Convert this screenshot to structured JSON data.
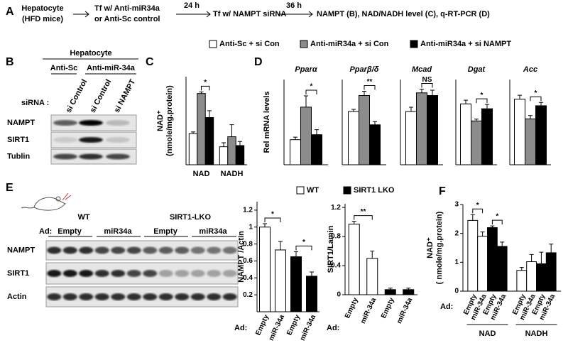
{
  "panels": [
    "A",
    "B",
    "C",
    "D",
    "E",
    "F"
  ],
  "schematic": {
    "steps": [
      [
        "Hepatocyte",
        "(HFD mice)"
      ],
      [
        "Tf w/ Anti-miR34a",
        "or Anti-Sc control"
      ],
      [
        "Tf w/ NAMPT siRNA"
      ],
      [
        "NAMPT (B), NAD/NADH  level (C), q-RT-PCR (D)"
      ]
    ],
    "intervals": [
      "24 h",
      "36 h"
    ]
  },
  "blot_b": {
    "title": "Hepatocyte",
    "groups": [
      "Anti-Sc",
      "Anti-miR-34a"
    ],
    "sirna_label": "siRNA :",
    "lanes": [
      "si Control",
      "si Control",
      "si NAMPT"
    ],
    "rows": [
      "NAMPT",
      "SIRT1",
      "Tublin"
    ]
  },
  "blot_e": {
    "groups": [
      "WT",
      "SIRT1-LKO"
    ],
    "ad_label": "Ad:",
    "lanes": [
      "Empty",
      "miR34a",
      "Empty",
      "miR34a"
    ],
    "rows": [
      "NAMPT",
      "SIRT1",
      "Actin"
    ]
  },
  "chart_data": [
    {
      "type": "bar",
      "ylabel": [
        "NAD⁺",
        "(nmole/mg.protein)"
      ],
      "categories": [
        "NAD",
        "NADH"
      ],
      "ylim": [
        0,
        2.2
      ],
      "series": [
        {
          "name": "Anti-Sc + si Con",
          "color": "#ffffff",
          "values": [
            0.78,
            0.45
          ],
          "errors": [
            0.04,
            0.1
          ]
        },
        {
          "name": "Anti-miR34a + si Con",
          "color": "#8c8c8c",
          "values": [
            1.78,
            0.7
          ],
          "errors": [
            0.04,
            0.3
          ]
        },
        {
          "name": "Anti-miR34a + si NAMPT",
          "color": "#000000",
          "values": [
            1.18,
            0.48
          ],
          "errors": [
            0.17,
            0.1
          ]
        }
      ],
      "annotations": [
        "*"
      ]
    },
    {
      "type": "bar",
      "title": "Pparα",
      "ylabel": "Rel mRNA levels",
      "ylim": [
        0,
        3.4
      ],
      "series": [
        {
          "name": "Anti-Sc + si Con",
          "color": "#ffffff",
          "values": [
            1.0
          ],
          "errors": [
            0.1
          ]
        },
        {
          "name": "Anti-miR34a + si Con",
          "color": "#8c8c8c",
          "values": [
            2.3
          ],
          "errors": [
            0.45
          ]
        },
        {
          "name": "Anti-miR34a + si NAMPT",
          "color": "#000000",
          "values": [
            1.2
          ],
          "errors": [
            0.2
          ]
        }
      ],
      "annotations": [
        "*"
      ]
    },
    {
      "type": "bar",
      "title": "Pparβ/δ",
      "ylim": [
        0,
        1.6
      ],
      "series": [
        {
          "name": "Anti-Sc + si Con",
          "color": "#ffffff",
          "values": [
            1.0
          ],
          "errors": [
            0.04
          ]
        },
        {
          "name": "Anti-miR34a + si Con",
          "color": "#8c8c8c",
          "values": [
            1.3
          ],
          "errors": [
            0.08
          ]
        },
        {
          "name": "Anti-miR34a + si NAMPT",
          "color": "#000000",
          "values": [
            0.75
          ],
          "errors": [
            0.06
          ]
        }
      ],
      "annotations": [
        "**"
      ]
    },
    {
      "type": "bar",
      "title": "Mcad",
      "ylim": [
        0,
        1.6
      ],
      "series": [
        {
          "name": "Anti-Sc + si Con",
          "color": "#ffffff",
          "values": [
            1.0
          ],
          "errors": [
            0.08
          ]
        },
        {
          "name": "Anti-miR34a + si Con",
          "color": "#8c8c8c",
          "values": [
            1.35
          ],
          "errors": [
            0.07
          ]
        },
        {
          "name": "Anti-miR34a + si NAMPT",
          "color": "#000000",
          "values": [
            1.3
          ],
          "errors": [
            0.1
          ]
        }
      ],
      "annotations": [
        "NS"
      ]
    },
    {
      "type": "bar",
      "title": "Dgat",
      "ylim": [
        0,
        1.4
      ],
      "series": [
        {
          "name": "Anti-Sc + si Con",
          "color": "#ffffff",
          "values": [
            1.0
          ],
          "errors": [
            0.06
          ]
        },
        {
          "name": "Anti-miR34a + si Con",
          "color": "#8c8c8c",
          "values": [
            0.72
          ],
          "errors": [
            0.03
          ]
        },
        {
          "name": "Anti-miR34a + si NAMPT",
          "color": "#000000",
          "values": [
            0.92
          ],
          "errors": [
            0.07
          ]
        }
      ],
      "annotations": [
        "*"
      ]
    },
    {
      "type": "bar",
      "title": "Acc",
      "ylim": [
        0,
        1.3
      ],
      "series": [
        {
          "name": "Anti-Sc + si Con",
          "color": "#ffffff",
          "values": [
            1.0
          ],
          "errors": [
            0.06
          ]
        },
        {
          "name": "Anti-miR34a + si Con",
          "color": "#8c8c8c",
          "values": [
            0.7
          ],
          "errors": [
            0.05
          ]
        },
        {
          "name": "Anti-miR34a + si NAMPT",
          "color": "#000000",
          "values": [
            0.9
          ],
          "errors": [
            0.05
          ]
        }
      ],
      "annotations": [
        "*"
      ]
    },
    {
      "type": "bar",
      "ylabel": "NAMPT /Actin",
      "xlabel": "Ad:",
      "categories": [
        "Empty",
        "miR-34a",
        "Empty",
        "miR-34a"
      ],
      "ylim": [
        0,
        1.3
      ],
      "yticks": [
        0.2,
        0.4,
        0.6,
        0.8,
        1,
        1.2
      ],
      "series": [
        {
          "name": "WT",
          "color": "#ffffff",
          "values": [
            1.0,
            0.73,
            null,
            null
          ],
          "errors": [
            0.04,
            0.1,
            null,
            null
          ]
        },
        {
          "name": "SIRT1 LKO",
          "color": "#000000",
          "values": [
            null,
            null,
            0.65,
            0.42
          ],
          "errors": [
            null,
            null,
            0.06,
            0.05
          ]
        }
      ],
      "annotations": [
        "*",
        "*"
      ]
    },
    {
      "type": "bar",
      "ylabel": "SIRT1/Lamin",
      "xlabel": "Ad:",
      "categories": [
        "Empty",
        "miR-34a",
        "Empty",
        "miR-34a"
      ],
      "ylim": [
        0,
        1.25
      ],
      "yticks": [
        0,
        0.4,
        0.8,
        1.2
      ],
      "series": [
        {
          "name": "WT",
          "color": "#ffffff",
          "values": [
            0.97,
            0.5,
            null,
            null
          ],
          "errors": [
            0.04,
            0.1,
            null,
            null
          ]
        },
        {
          "name": "SIRT1 LKO",
          "color": "#000000",
          "values": [
            null,
            null,
            0.07,
            0.07
          ],
          "errors": [
            null,
            null,
            0.02,
            0.02
          ]
        }
      ],
      "annotations": [
        "**"
      ]
    },
    {
      "type": "bar",
      "ylabel": [
        "NAD⁺",
        "( nmole/mg.protein)"
      ],
      "xlabel": "Ad:",
      "categories": [
        "NAD",
        "NADH"
      ],
      "ylim": [
        0,
        3
      ],
      "yticks": [
        0,
        1,
        2,
        3
      ],
      "series": [
        {
          "name": "Empty",
          "color": "#ffffff",
          "values": [
            2.45,
            0.72
          ],
          "errors": [
            0.2,
            0.1
          ]
        },
        {
          "name": "miR-34a",
          "color": "#ffffff",
          "values": [
            1.9,
            1.02
          ],
          "errors": [
            0.15,
            0.25
          ]
        },
        {
          "name": "Empty",
          "color": "#000000",
          "values": [
            2.2,
            0.95
          ],
          "errors": [
            0.06,
            0.4
          ]
        },
        {
          "name": "miR-34a",
          "color": "#000000",
          "values": [
            1.55,
            1.33
          ],
          "errors": [
            0.15,
            0.3
          ]
        }
      ],
      "annotations": [
        "*",
        "*"
      ]
    }
  ]
}
